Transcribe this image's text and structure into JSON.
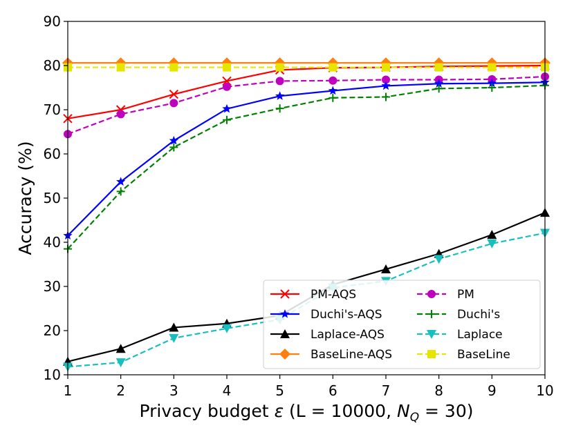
{
  "chart_data": {
    "type": "line",
    "title": "",
    "xlabel": "Privacy budget ε (L = 10000, N_Q = 30)",
    "xlabel_parts": {
      "prefix": "Privacy budget ",
      "epsilon": "ε",
      "middle": " (L = 10000, ",
      "n": "N",
      "q": "Q",
      "suffix": " = 30)"
    },
    "ylabel": "Accuracy (%)",
    "xlim": [
      1,
      10
    ],
    "ylim": [
      10,
      90
    ],
    "x": [
      1,
      2,
      3,
      4,
      5,
      6,
      7,
      8,
      9,
      10
    ],
    "x_ticks": [
      "1",
      "2",
      "3",
      "4",
      "5",
      "6",
      "7",
      "8",
      "9",
      "10"
    ],
    "y_ticks": [
      "10",
      "20",
      "30",
      "40",
      "50",
      "60",
      "70",
      "80",
      "90"
    ],
    "legend_position": "bottom-right",
    "series": [
      {
        "name": "PM-AQS",
        "color": "#ff0000",
        "dash": "solid",
        "marker": "x",
        "values": [
          68.0,
          70.0,
          73.5,
          76.5,
          79.0,
          79.5,
          79.6,
          79.8,
          79.9,
          80.0
        ]
      },
      {
        "name": "PM",
        "color": "#bf00bf",
        "dash": "dashed",
        "marker": "circle",
        "values": [
          64.5,
          69.0,
          71.5,
          75.2,
          76.5,
          76.6,
          76.8,
          76.8,
          76.9,
          77.5
        ]
      },
      {
        "name": "Duchi's-AQS",
        "color": "#0000ff",
        "dash": "solid",
        "marker": "star",
        "values": [
          41.5,
          53.7,
          63.0,
          70.2,
          73.1,
          74.3,
          75.4,
          75.9,
          76.0,
          76.2
        ]
      },
      {
        "name": "Duchi's",
        "color": "#008000",
        "dash": "dashed",
        "marker": "plus",
        "values": [
          38.5,
          51.5,
          61.5,
          67.7,
          70.3,
          72.7,
          72.9,
          74.8,
          75.0,
          75.5
        ]
      },
      {
        "name": "Laplace-AQS",
        "color": "#000000",
        "dash": "solid",
        "marker": "triangle-up",
        "values": [
          13.0,
          15.9,
          20.7,
          21.6,
          23.4,
          30.4,
          33.9,
          37.4,
          41.7,
          46.7
        ]
      },
      {
        "name": "Laplace",
        "color": "#17bfbf",
        "dash": "dashed",
        "marker": "triangle-down",
        "values": [
          11.8,
          12.8,
          18.3,
          20.5,
          22.5,
          29.7,
          31.2,
          36.2,
          39.7,
          42.1
        ]
      },
      {
        "name": "BaseLine-AQS",
        "color": "#ff7f0e",
        "dash": "solid",
        "marker": "diamond",
        "values": [
          80.6,
          80.6,
          80.6,
          80.6,
          80.6,
          80.6,
          80.6,
          80.6,
          80.6,
          80.6
        ]
      },
      {
        "name": "BaseLine",
        "color": "#e5e500",
        "dash": "dashed",
        "marker": "square",
        "values": [
          79.6,
          79.6,
          79.6,
          79.6,
          79.6,
          79.6,
          79.6,
          79.6,
          79.6,
          79.6
        ]
      }
    ],
    "legend_order": [
      "PM-AQS",
      "PM",
      "Duchi's-AQS",
      "Duchi's",
      "Laplace-AQS",
      "Laplace",
      "BaseLine-AQS",
      "BaseLine"
    ]
  }
}
